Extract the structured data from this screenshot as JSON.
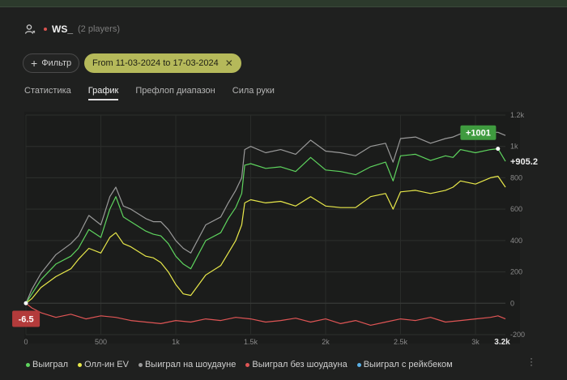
{
  "header": {
    "user_name": "WS_",
    "players": "(2 players)"
  },
  "toolbar": {
    "filter_label": "Фильтр",
    "date_range": "From 11-03-2024 to 17-03-2024"
  },
  "tabs": [
    {
      "label": "Статистика",
      "active": false
    },
    {
      "label": "График",
      "active": true
    },
    {
      "label": "Префлоп диапазон",
      "active": false
    },
    {
      "label": "Сила руки",
      "active": false
    }
  ],
  "chart_data": {
    "type": "line",
    "x_ticks": [
      "0",
      "500",
      "1k",
      "1.5k",
      "2k",
      "2.5k",
      "3k"
    ],
    "x_last_label": "3.2k",
    "y_ticks": [
      "-200",
      "0",
      "200",
      "400",
      "600",
      "800",
      "1k",
      "1.2k"
    ],
    "xlim": [
      0,
      3200
    ],
    "ylim": [
      -200,
      1200
    ],
    "grid": true,
    "legend_position": "bottom",
    "annotations": {
      "top_badge": "+1001",
      "right_value": "+905.2",
      "bottom_badge": "-6.5"
    },
    "series": [
      {
        "name": "Выиграл",
        "color": "#5ed45e",
        "x": [
          0,
          40,
          100,
          200,
          300,
          350,
          420,
          500,
          560,
          600,
          650,
          700,
          800,
          850,
          900,
          950,
          1000,
          1050,
          1100,
          1200,
          1300,
          1350,
          1400,
          1440,
          1460,
          1500,
          1600,
          1700,
          1800,
          1900,
          2000,
          2100,
          2200,
          2300,
          2400,
          2450,
          2500,
          2600,
          2700,
          2800,
          2850,
          2900,
          3000,
          3100,
          3150,
          3200
        ],
        "y": [
          0,
          60,
          150,
          250,
          300,
          350,
          470,
          420,
          600,
          680,
          550,
          520,
          460,
          440,
          430,
          380,
          300,
          250,
          220,
          400,
          450,
          540,
          610,
          700,
          880,
          890,
          860,
          870,
          840,
          930,
          850,
          840,
          820,
          870,
          900,
          780,
          940,
          950,
          910,
          940,
          930,
          980,
          960,
          980,
          985,
          905
        ]
      },
      {
        "name": "Олл-ин EV",
        "color": "#e8e84a",
        "x": [
          0,
          40,
          100,
          200,
          300,
          350,
          420,
          500,
          560,
          600,
          650,
          700,
          800,
          850,
          900,
          950,
          1000,
          1050,
          1100,
          1200,
          1300,
          1350,
          1400,
          1440,
          1460,
          1500,
          1600,
          1700,
          1800,
          1900,
          2000,
          2100,
          2200,
          2300,
          2400,
          2450,
          2500,
          2600,
          2700,
          2800,
          2850,
          2900,
          3000,
          3100,
          3150,
          3200
        ],
        "y": [
          0,
          30,
          100,
          170,
          220,
          280,
          350,
          320,
          420,
          450,
          380,
          360,
          300,
          290,
          260,
          200,
          120,
          60,
          50,
          180,
          240,
          320,
          400,
          500,
          640,
          660,
          640,
          650,
          620,
          680,
          620,
          610,
          610,
          680,
          700,
          600,
          710,
          720,
          700,
          720,
          740,
          780,
          760,
          800,
          810,
          740
        ]
      },
      {
        "name": "Выиграл на шоудауне",
        "color": "#9a9a9a",
        "x": [
          0,
          40,
          100,
          200,
          300,
          350,
          420,
          500,
          560,
          600,
          650,
          700,
          800,
          850,
          900,
          950,
          1000,
          1050,
          1100,
          1200,
          1300,
          1350,
          1400,
          1440,
          1460,
          1500,
          1600,
          1700,
          1800,
          1900,
          2000,
          2100,
          2200,
          2300,
          2400,
          2450,
          2500,
          2600,
          2700,
          2800,
          2850,
          2900,
          3000,
          3100,
          3150,
          3200
        ],
        "y": [
          0,
          90,
          190,
          310,
          380,
          430,
          560,
          500,
          680,
          740,
          620,
          600,
          540,
          520,
          520,
          470,
          400,
          350,
          320,
          500,
          550,
          640,
          720,
          800,
          980,
          1000,
          960,
          980,
          950,
          1040,
          970,
          960,
          940,
          1000,
          1020,
          900,
          1050,
          1060,
          1020,
          1050,
          1060,
          1080,
          1070,
          1090,
          1090,
          1070
        ]
      },
      {
        "name": "Выиграл без шоудауна",
        "color": "#e05555",
        "x": [
          0,
          40,
          100,
          200,
          300,
          400,
          500,
          600,
          700,
          800,
          900,
          1000,
          1100,
          1200,
          1300,
          1400,
          1500,
          1600,
          1700,
          1800,
          1900,
          2000,
          2100,
          2200,
          2300,
          2400,
          2500,
          2600,
          2700,
          2800,
          2900,
          3000,
          3100,
          3150,
          3200
        ],
        "y": [
          0,
          -30,
          -60,
          -90,
          -70,
          -100,
          -80,
          -90,
          -110,
          -120,
          -130,
          -110,
          -120,
          -100,
          -110,
          -90,
          -100,
          -120,
          -110,
          -95,
          -120,
          -100,
          -130,
          -110,
          -140,
          -120,
          -100,
          -110,
          -90,
          -120,
          -110,
          -100,
          -90,
          -80,
          -100
        ]
      },
      {
        "name": "Выиграл с рейкбеком",
        "color": "#5ab0e6",
        "x": [],
        "y": []
      }
    ]
  }
}
